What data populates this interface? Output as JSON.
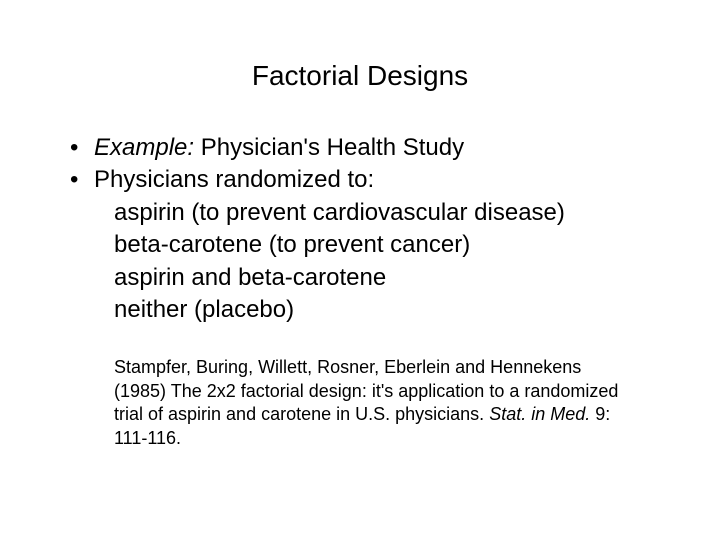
{
  "title": "Factorial Designs",
  "bullets": [
    {
      "prefix": "Example:",
      "prefixItalic": true,
      "text": "  Physician's Health Study"
    },
    {
      "prefix": "",
      "prefixItalic": false,
      "text": "Physicians randomized to:"
    }
  ],
  "subitems": [
    "aspirin (to prevent cardiovascular disease)",
    "beta-carotene (to prevent cancer)",
    "aspirin and beta-carotene",
    "neither (placebo)"
  ],
  "citation": {
    "part1": "Stampfer, Buring, Willett, Rosner, Eberlein and Hennekens (1985) The 2x2 factorial design: it's application to a randomized trial of aspirin and carotene in U.S. physicians. ",
    "italicPart": "Stat. in Med.",
    "part2": " 9: 111-116."
  },
  "styles": {
    "backgroundColor": "#ffffff",
    "textColor": "#000000",
    "titleFontSize": 28,
    "bodyFontSize": 24,
    "citationFontSize": 18
  }
}
